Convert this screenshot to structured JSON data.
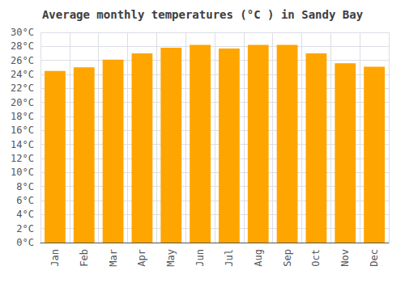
{
  "chart_data": {
    "type": "bar",
    "title": "Average monthly temperatures (°C ) in Sandy Bay",
    "categories": [
      "Jan",
      "Feb",
      "Mar",
      "Apr",
      "May",
      "Jun",
      "Jul",
      "Aug",
      "Sep",
      "Oct",
      "Nov",
      "Dec"
    ],
    "values": [
      24.5,
      25.0,
      26.1,
      27.0,
      27.8,
      28.2,
      27.7,
      28.2,
      28.2,
      27.0,
      25.6,
      25.1
    ],
    "color": "#FFA500",
    "ylim": [
      0,
      30
    ],
    "yticks": [
      {
        "value": 0,
        "label": "0°C"
      },
      {
        "value": 2,
        "label": "2°C"
      },
      {
        "value": 4,
        "label": "4°C"
      },
      {
        "value": 6,
        "label": "6°C"
      },
      {
        "value": 8,
        "label": "8°C"
      },
      {
        "value": 10,
        "label": "10°C"
      },
      {
        "value": 12,
        "label": "12°C"
      },
      {
        "value": 14,
        "label": "14°C"
      },
      {
        "value": 16,
        "label": "16°C"
      },
      {
        "value": 18,
        "label": "18°C"
      },
      {
        "value": 20,
        "label": "20°C"
      },
      {
        "value": 22,
        "label": "22°C"
      },
      {
        "value": 24,
        "label": "24°C"
      },
      {
        "value": 26,
        "label": "26°C"
      },
      {
        "value": 28,
        "label": "28°C"
      },
      {
        "value": 30,
        "label": "30°C"
      }
    ],
    "grid": true
  }
}
